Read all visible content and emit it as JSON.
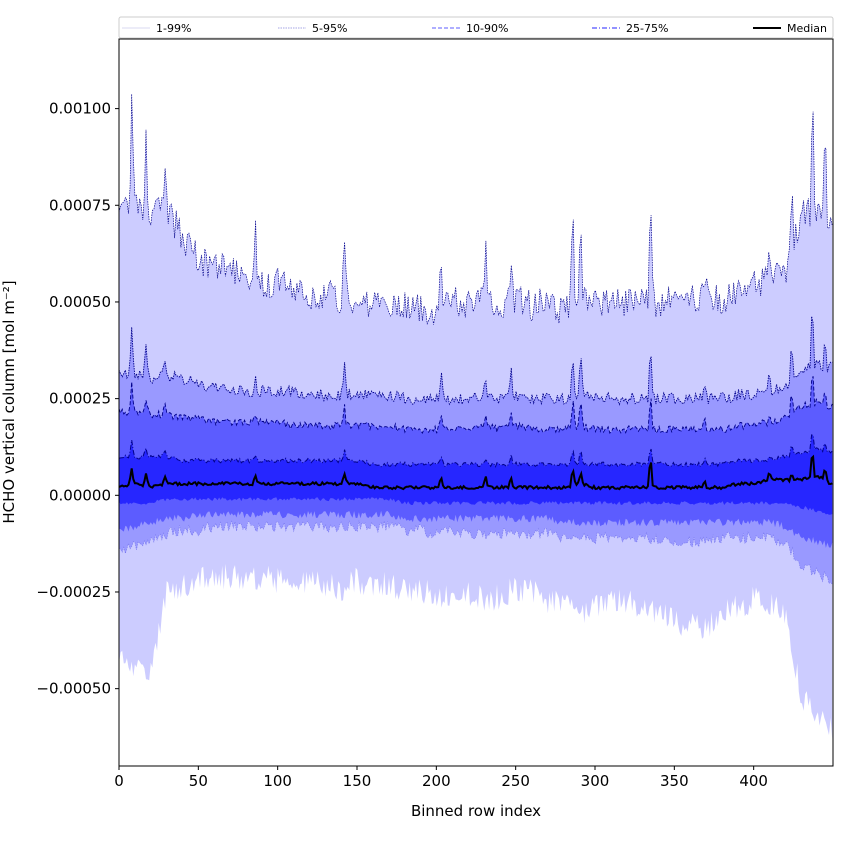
{
  "chart_data": {
    "type": "line",
    "title": "",
    "xlabel": "Binned row index",
    "ylabel": "HCHO vertical column [mol m⁻²]",
    "xlim": [
      0,
      450
    ],
    "ylim": [
      -0.0007,
      0.00118
    ],
    "xticks": [
      0,
      50,
      100,
      150,
      200,
      250,
      300,
      350,
      400
    ],
    "xtick_labels": [
      "0",
      "50",
      "100",
      "150",
      "200",
      "250",
      "300",
      "350",
      "400"
    ],
    "yticks": [
      -0.0005,
      -0.00025,
      0.0,
      0.00025,
      0.0005,
      0.00075,
      0.001
    ],
    "ytick_labels": [
      "−0.00050",
      "−0.00025",
      "0.00000",
      "0.00025",
      "0.00050",
      "0.00075",
      "0.00100"
    ],
    "legend_position": "top, spanning full width",
    "grid": false,
    "colors": {
      "band_1_99": "#ccccff",
      "band_5_95": "#9999ff",
      "band_10_90": "#5c5cff",
      "band_25_75": "#2626ff",
      "median": "#000000",
      "edge_1_99": "#aaaaee",
      "edge_5_95": "#00008b",
      "edge_10_90": "#00008b",
      "edge_25_75": "#00008b"
    },
    "legend": [
      {
        "label": "1-99%",
        "style": "thin-light"
      },
      {
        "label": "5-95%",
        "style": "dotted"
      },
      {
        "label": "10-90%",
        "style": "dashed"
      },
      {
        "label": "25-75%",
        "style": "dashdot"
      },
      {
        "label": "Median",
        "style": "solid-black"
      }
    ],
    "x": [
      0,
      10,
      20,
      30,
      40,
      50,
      60,
      70,
      80,
      90,
      100,
      110,
      120,
      130,
      140,
      150,
      160,
      170,
      180,
      190,
      200,
      210,
      220,
      230,
      240,
      250,
      260,
      270,
      280,
      290,
      300,
      310,
      320,
      330,
      340,
      350,
      360,
      370,
      380,
      390,
      400,
      410,
      420,
      430,
      440,
      449
    ],
    "series": [
      {
        "name": "1-99%",
        "lower": [
          -0.00042,
          -0.00045,
          -0.00045,
          -0.00025,
          -0.00023,
          -0.00022,
          -0.00021,
          -0.00021,
          -0.00021,
          -0.00021,
          -0.00022,
          -0.00023,
          -0.00022,
          -0.00023,
          -0.00024,
          -0.00022,
          -0.00023,
          -0.00023,
          -0.00024,
          -0.00024,
          -0.00027,
          -0.00025,
          -0.00025,
          -0.00027,
          -0.00026,
          -0.00024,
          -0.00025,
          -0.00027,
          -0.00028,
          -0.0003,
          -0.00029,
          -0.00028,
          -0.00027,
          -0.00029,
          -0.0003,
          -0.00032,
          -0.00034,
          -0.00034,
          -0.00031,
          -0.00029,
          -0.00027,
          -0.00028,
          -0.00031,
          -0.00052,
          -0.00058,
          -0.0006
        ],
        "upper": [
          0.00072,
          0.00075,
          0.00072,
          0.00074,
          0.00067,
          0.00061,
          0.00059,
          0.00058,
          0.00057,
          0.00055,
          0.00055,
          0.00053,
          0.00051,
          0.00052,
          0.00051,
          0.0005,
          0.0005,
          0.0005,
          0.00049,
          0.00048,
          0.00048,
          0.0005,
          0.0005,
          0.00052,
          0.00049,
          0.00051,
          0.00049,
          0.0005,
          0.00047,
          0.00053,
          0.0005,
          0.00049,
          0.0005,
          0.00051,
          0.0005,
          0.00051,
          0.00051,
          0.00052,
          0.0005,
          0.00052,
          0.00054,
          0.00057,
          0.00058,
          0.00072,
          0.00074,
          0.0007
        ]
      },
      {
        "name": "5-95%",
        "lower": [
          -0.00015,
          -0.00013,
          -0.00012,
          -0.0001,
          -9e-05,
          -9e-05,
          -8e-05,
          -8e-05,
          -8e-05,
          -8e-05,
          -8e-05,
          -8e-05,
          -8e-05,
          -8e-05,
          -8e-05,
          -8e-05,
          -8e-05,
          -8e-05,
          -9e-05,
          -9e-05,
          -0.0001,
          -9e-05,
          -0.0001,
          -0.0001,
          -0.0001,
          -0.0001,
          -0.0001,
          -0.0001,
          -0.00011,
          -0.00011,
          -0.00011,
          -0.00011,
          -0.00011,
          -0.00011,
          -0.00011,
          -0.00012,
          -0.00012,
          -0.00012,
          -0.00011,
          -0.00011,
          -0.00011,
          -0.00011,
          -0.00012,
          -0.00018,
          -0.0002,
          -0.00022
        ],
        "upper": [
          0.00032,
          0.00031,
          0.0003,
          0.00031,
          0.0003,
          0.00029,
          0.00028,
          0.00027,
          0.00027,
          0.00027,
          0.00027,
          0.00027,
          0.00026,
          0.00026,
          0.00026,
          0.00026,
          0.00026,
          0.00026,
          0.00025,
          0.00025,
          0.00025,
          0.00025,
          0.00025,
          0.00026,
          0.00025,
          0.00026,
          0.00025,
          0.00025,
          0.00025,
          0.00026,
          0.00025,
          0.00025,
          0.00025,
          0.00025,
          0.00025,
          0.00025,
          0.00025,
          0.00025,
          0.00025,
          0.00026,
          0.00026,
          0.00027,
          0.00028,
          0.00033,
          0.00034,
          0.00033
        ]
      },
      {
        "name": "10-90%",
        "lower": [
          -9e-05,
          -8e-05,
          -7e-05,
          -6e-05,
          -6e-05,
          -5e-05,
          -5e-05,
          -5e-05,
          -5e-05,
          -5e-05,
          -5e-05,
          -5e-05,
          -5e-05,
          -5e-05,
          -5e-05,
          -5e-05,
          -5e-05,
          -5e-05,
          -6e-05,
          -6e-05,
          -6e-05,
          -6e-05,
          -6e-05,
          -6e-05,
          -6e-05,
          -6e-05,
          -6e-05,
          -6e-05,
          -7e-05,
          -7e-05,
          -7e-05,
          -7e-05,
          -7e-05,
          -7e-05,
          -7e-05,
          -7e-05,
          -7e-05,
          -7e-05,
          -7e-05,
          -7e-05,
          -7e-05,
          -7e-05,
          -8e-05,
          -0.00011,
          -0.00012,
          -0.00013
        ],
        "upper": [
          0.00022,
          0.00021,
          0.00021,
          0.00021,
          0.0002,
          0.0002,
          0.00019,
          0.00019,
          0.00019,
          0.00019,
          0.00019,
          0.00018,
          0.00018,
          0.00018,
          0.00018,
          0.00018,
          0.00018,
          0.00018,
          0.00017,
          0.00017,
          0.00017,
          0.00017,
          0.00017,
          0.00018,
          0.00017,
          0.00018,
          0.00017,
          0.00017,
          0.00017,
          0.00018,
          0.00017,
          0.00017,
          0.00017,
          0.00017,
          0.00017,
          0.00017,
          0.00017,
          0.00017,
          0.00017,
          0.00018,
          0.00018,
          0.00019,
          0.0002,
          0.00023,
          0.00024,
          0.00023
        ]
      },
      {
        "name": "25-75%",
        "lower": [
          -2e-05,
          -2e-05,
          -2e-05,
          -1e-05,
          -1e-05,
          -1e-05,
          -1e-05,
          -1e-05,
          -1e-05,
          -1e-05,
          -1e-05,
          -1e-05,
          -1e-05,
          -1e-05,
          -1e-05,
          -1e-05,
          -1e-05,
          -1e-05,
          -2e-05,
          -2e-05,
          -2e-05,
          -2e-05,
          -2e-05,
          -2e-05,
          -2e-05,
          -2e-05,
          -2e-05,
          -2e-05,
          -2e-05,
          -2e-05,
          -2e-05,
          -2e-05,
          -2e-05,
          -2e-05,
          -2e-05,
          -2e-05,
          -2e-05,
          -2e-05,
          -2e-05,
          -2e-05,
          -2e-05,
          -2e-05,
          -2e-05,
          -3e-05,
          -4e-05,
          -5e-05
        ],
        "upper": [
          0.0001,
          0.0001,
          0.0001,
          0.0001,
          9e-05,
          9e-05,
          9e-05,
          9e-05,
          9e-05,
          9e-05,
          9e-05,
          9e-05,
          9e-05,
          9e-05,
          9e-05,
          9e-05,
          8e-05,
          8e-05,
          8e-05,
          8e-05,
          8e-05,
          8e-05,
          8e-05,
          8e-05,
          8e-05,
          8e-05,
          8e-05,
          8e-05,
          8e-05,
          8e-05,
          8e-05,
          8e-05,
          8e-05,
          8e-05,
          8e-05,
          8e-05,
          8e-05,
          8e-05,
          8e-05,
          9e-05,
          9e-05,
          9e-05,
          0.0001,
          0.00011,
          0.00012,
          0.00011
        ]
      },
      {
        "name": "Median",
        "values": [
          2e-05,
          3e-05,
          2e-05,
          3e-05,
          3e-05,
          3e-05,
          3e-05,
          3e-05,
          3e-05,
          3e-05,
          3e-05,
          3e-05,
          3e-05,
          3e-05,
          3e-05,
          3e-05,
          2e-05,
          2e-05,
          2e-05,
          2e-05,
          2e-05,
          2e-05,
          2e-05,
          2e-05,
          2e-05,
          2e-05,
          2e-05,
          2e-05,
          2e-05,
          3e-05,
          2e-05,
          2e-05,
          2e-05,
          2e-05,
          2e-05,
          2e-05,
          2e-05,
          2e-05,
          2e-05,
          3e-05,
          3e-05,
          4e-05,
          4e-05,
          4e-05,
          5e-05,
          3e-05
        ]
      }
    ],
    "spikes": [
      {
        "x": 8,
        "upper_1_99": 0.00103,
        "upper_5_95": 0.00045,
        "median": 7e-05
      },
      {
        "x": 17,
        "upper_1_99": 0.00095,
        "upper_5_95": 0.00038,
        "median": 6e-05
      },
      {
        "x": 29,
        "upper_1_99": 0.00087,
        "upper_5_95": 0.00036,
        "median": 5e-05
      },
      {
        "x": 86,
        "upper_1_99": 0.00072,
        "upper_5_95": 0.00031,
        "median": 5e-05
      },
      {
        "x": 142,
        "upper_1_99": 0.0007,
        "upper_5_95": 0.00035,
        "median": 6e-05
      },
      {
        "x": 203,
        "upper_1_99": 0.00065,
        "upper_5_95": 0.00032,
        "median": 5e-05
      },
      {
        "x": 231,
        "upper_1_99": 0.00064,
        "upper_5_95": 0.00032,
        "median": 5e-05
      },
      {
        "x": 247,
        "upper_1_99": 0.00062,
        "upper_5_95": 0.00034,
        "median": 5e-05
      },
      {
        "x": 286,
        "upper_1_99": 0.00073,
        "upper_5_95": 0.00038,
        "median": 7e-05
      },
      {
        "x": 291,
        "upper_1_99": 0.0007,
        "upper_5_95": 0.00038,
        "median": 6e-05
      },
      {
        "x": 335,
        "upper_1_99": 0.00078,
        "upper_5_95": 0.00041,
        "median": 0.00011
      },
      {
        "x": 369,
        "upper_1_99": 0.0006,
        "upper_5_95": 0.0003,
        "median": 4e-05
      },
      {
        "x": 410,
        "upper_1_99": 0.00067,
        "upper_5_95": 0.00032,
        "median": 6e-05
      },
      {
        "x": 424,
        "upper_1_99": 0.0008,
        "upper_5_95": 0.0004,
        "median": 6e-05
      },
      {
        "x": 437,
        "upper_1_99": 0.00108,
        "upper_5_95": 0.00051,
        "median": 0.00012
      },
      {
        "x": 445,
        "upper_1_99": 0.001,
        "upper_5_95": 0.0004,
        "median": 7e-05
      }
    ]
  }
}
